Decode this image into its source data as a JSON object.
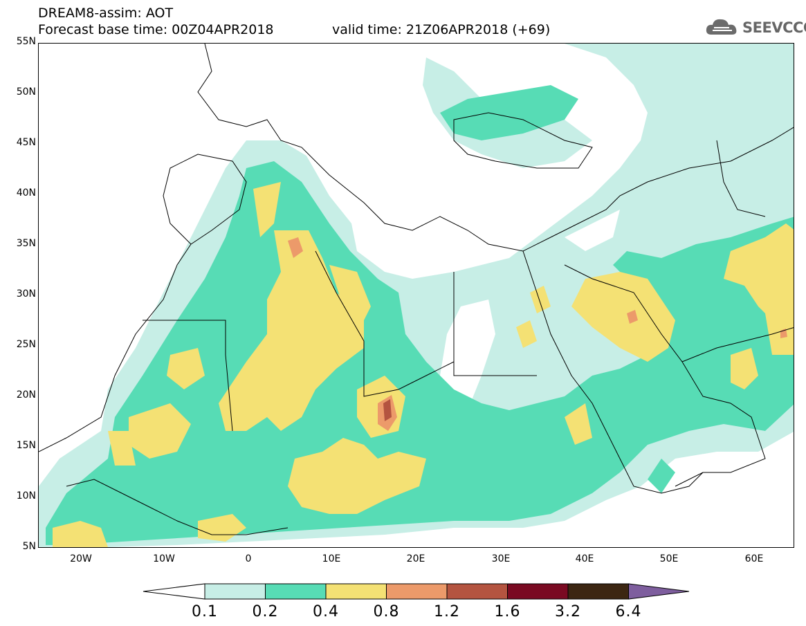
{
  "header": {
    "line1": "DREAM8-assim: AOT",
    "line2_left": "Forecast base time: 00Z04APR2018",
    "line2_right": "valid time: 21Z06APR2018 (+69)"
  },
  "logo": {
    "text": "SEEVCCC",
    "icon": "cloud-icon"
  },
  "map": {
    "lat_ticks": [
      "55N",
      "50N",
      "45N",
      "40N",
      "35N",
      "30N",
      "25N",
      "20N",
      "15N",
      "10N",
      "5N"
    ],
    "lon_ticks": [
      "20W",
      "10W",
      "0",
      "10E",
      "20E",
      "30E",
      "40E",
      "50E",
      "60E"
    ]
  },
  "colorbar": {
    "labels": [
      "0.1",
      "0.2",
      "0.4",
      "0.8",
      "1.2",
      "1.6",
      "3.2",
      "6.4"
    ],
    "colors": [
      "#ffffff",
      "#c7eee6",
      "#57dcb5",
      "#f4e174",
      "#ec9a6a",
      "#b45440",
      "#7a0a22",
      "#3c2612",
      "#7e5e9e"
    ]
  }
}
